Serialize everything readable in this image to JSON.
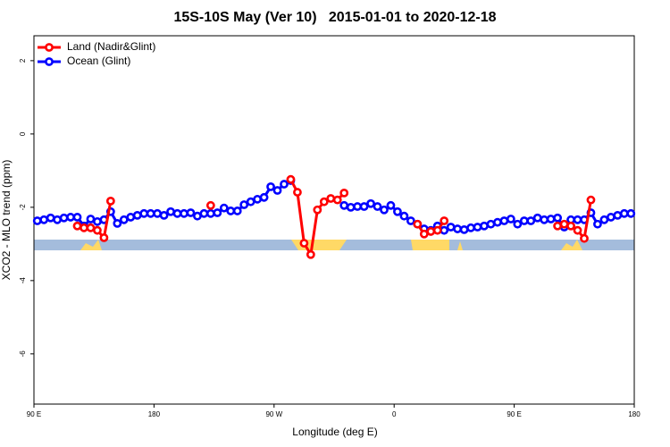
{
  "chart_data": {
    "type": "line",
    "title": "15S-10S May (Ver 10)   2015-01-01 to 2020-12-18",
    "x_label": "Longitude (deg E)",
    "y_label": "XCO2 - MLO trend (ppm)",
    "xlim": [
      90,
      540
    ],
    "xticks": [
      {
        "value": 90,
        "label": "90 E"
      },
      {
        "value": 180,
        "label": "180"
      },
      {
        "value": 270,
        "label": "90 W"
      },
      {
        "value": 360,
        "label": "0"
      },
      {
        "value": 450,
        "label": "90 E"
      },
      {
        "value": 540,
        "label": "180"
      }
    ],
    "ylim": [
      -7.37,
      2.68
    ],
    "yticks": [
      2,
      0,
      -2,
      -4,
      -6
    ],
    "legend": "top-left",
    "x": [
      92.5,
      97.5,
      102.5,
      107.5,
      112.5,
      117.5,
      122.5,
      127.5,
      132.5,
      137.5,
      142.5,
      147.5,
      152.5,
      157.5,
      162.5,
      167.5,
      172.5,
      177.5,
      182.5,
      187.5,
      192.5,
      197.5,
      202.5,
      207.5,
      212.5,
      217.5,
      222.5,
      227.5,
      232.5,
      237.5,
      242.5,
      247.5,
      252.5,
      257.5,
      262.5,
      267.5,
      272.5,
      277.5,
      282.5,
      287.5,
      292.5,
      297.5,
      302.5,
      307.5,
      312.5,
      317.5,
      322.5,
      327.5,
      332.5,
      337.5,
      342.5,
      347.5,
      352.5,
      357.5,
      362.5,
      367.5,
      372.5,
      377.5,
      382.5,
      387.5,
      392.5,
      397.5,
      402.5,
      407.5,
      412.5,
      417.5,
      422.5,
      427.5,
      432.5,
      437.5,
      442.5,
      447.5,
      452.5,
      457.5,
      462.5,
      467.5,
      472.5,
      477.5,
      482.5,
      487.5,
      492.5,
      497.5,
      502.5,
      507.5,
      512.5,
      517.5,
      522.5,
      527.5,
      532.5,
      537.5
    ],
    "series": [
      {
        "name": "Land (Nadir&Glint)",
        "color": "#ff0000",
        "values": [
          null,
          null,
          null,
          null,
          null,
          null,
          -2.51,
          -2.56,
          -2.56,
          -2.63,
          -2.83,
          -1.83,
          null,
          null,
          null,
          null,
          null,
          null,
          null,
          null,
          null,
          null,
          null,
          null,
          null,
          null,
          -1.95,
          null,
          null,
          null,
          null,
          null,
          null,
          null,
          null,
          null,
          null,
          null,
          -1.24,
          -1.59,
          -2.98,
          -3.29,
          -2.07,
          -1.85,
          -1.76,
          -1.8,
          -1.61,
          null,
          null,
          null,
          null,
          null,
          null,
          null,
          null,
          null,
          null,
          -2.46,
          -2.73,
          -2.66,
          -2.63,
          -2.37,
          null,
          null,
          null,
          null,
          null,
          null,
          null,
          null,
          null,
          null,
          null,
          null,
          null,
          null,
          null,
          null,
          -2.51,
          -2.46,
          -2.51,
          -2.63,
          -2.85,
          -1.8,
          null,
          null,
          null,
          null,
          null,
          null
        ]
      },
      {
        "name": "Ocean (Glint)",
        "color": "#0000ff",
        "values": [
          -2.37,
          -2.34,
          -2.29,
          -2.34,
          -2.29,
          -2.27,
          -2.27,
          -2.51,
          -2.32,
          -2.39,
          -2.34,
          -2.12,
          -2.44,
          -2.34,
          -2.27,
          -2.22,
          -2.17,
          -2.17,
          -2.17,
          -2.22,
          -2.12,
          -2.17,
          -2.17,
          -2.15,
          -2.24,
          -2.17,
          -2.17,
          -2.15,
          -2.02,
          -2.1,
          -2.1,
          -1.93,
          -1.85,
          -1.78,
          -1.73,
          -1.44,
          -1.54,
          -1.37,
          -1.27,
          null,
          null,
          null,
          null,
          null,
          null,
          null,
          -1.95,
          -2.0,
          -1.98,
          -1.98,
          -1.9,
          -1.98,
          -2.07,
          -1.95,
          -2.12,
          -2.24,
          -2.37,
          -2.46,
          -2.59,
          -2.63,
          -2.51,
          -2.63,
          -2.54,
          -2.59,
          -2.61,
          -2.56,
          -2.54,
          -2.51,
          -2.46,
          -2.41,
          -2.37,
          -2.32,
          -2.46,
          -2.37,
          -2.37,
          -2.29,
          -2.34,
          -2.32,
          -2.29,
          -2.54,
          -2.34,
          -2.34,
          -2.34,
          -2.15,
          -2.46,
          -2.34,
          -2.27,
          -2.22,
          -2.17,
          -2.17
        ]
      }
    ]
  }
}
